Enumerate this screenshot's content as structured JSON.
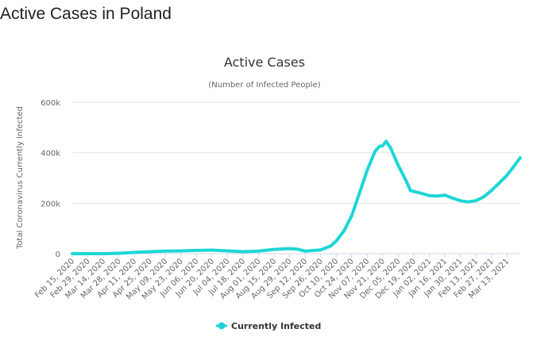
{
  "page": {
    "title": "Active Cases in Poland"
  },
  "chart_data": {
    "type": "line",
    "title": "Active Cases",
    "subtitle": "(Number of Infected People)",
    "ylabel": "Total Coronavirus Currently Infected",
    "xlabel": "",
    "ylim": [
      0,
      600000
    ],
    "yticks": [
      {
        "value": 0,
        "label": "0"
      },
      {
        "value": 200000,
        "label": "200k"
      },
      {
        "value": 400000,
        "label": "400k"
      },
      {
        "value": 600000,
        "label": "600k"
      }
    ],
    "xlim": [
      "2020-02-15",
      "2021-03-25"
    ],
    "xticks": [
      {
        "date": "2020-02-15",
        "label": "Feb 15, 2020"
      },
      {
        "date": "2020-02-29",
        "label": "Feb 29, 2020"
      },
      {
        "date": "2020-03-14",
        "label": "Mar 14, 2020"
      },
      {
        "date": "2020-03-28",
        "label": "Mar 28, 2020"
      },
      {
        "date": "2020-04-11",
        "label": "Apr 11, 2020"
      },
      {
        "date": "2020-04-25",
        "label": "Apr 25, 2020"
      },
      {
        "date": "2020-05-09",
        "label": "May 09, 2020"
      },
      {
        "date": "2020-05-23",
        "label": "May 23, 2020"
      },
      {
        "date": "2020-06-06",
        "label": "Jun 06, 2020"
      },
      {
        "date": "2020-06-20",
        "label": "Jun 20, 2020"
      },
      {
        "date": "2020-07-04",
        "label": "Jul 04, 2020"
      },
      {
        "date": "2020-07-18",
        "label": "Jul 18, 2020"
      },
      {
        "date": "2020-08-01",
        "label": "Aug 01, 2020"
      },
      {
        "date": "2020-08-15",
        "label": "Aug 15, 2020"
      },
      {
        "date": "2020-08-29",
        "label": "Aug 29, 2020"
      },
      {
        "date": "2020-09-12",
        "label": "Sep 12, 2020"
      },
      {
        "date": "2020-09-26",
        "label": "Sep 26, 2020"
      },
      {
        "date": "2020-10-10",
        "label": "Oct 10, 2020"
      },
      {
        "date": "2020-10-24",
        "label": "Oct 24, 2020"
      },
      {
        "date": "2020-11-07",
        "label": "Nov 07, 2020"
      },
      {
        "date": "2020-11-21",
        "label": "Nov 21, 2020"
      },
      {
        "date": "2020-12-05",
        "label": "Dec 05, 2020"
      },
      {
        "date": "2020-12-19",
        "label": "Dec 19, 2020"
      },
      {
        "date": "2021-01-02",
        "label": "Jan 02, 2021"
      },
      {
        "date": "2021-01-16",
        "label": "Jan 16, 2021"
      },
      {
        "date": "2021-01-30",
        "label": "Jan 30, 2021"
      },
      {
        "date": "2021-02-13",
        "label": "Feb 13, 2021"
      },
      {
        "date": "2021-02-27",
        "label": "Feb 27, 2021"
      },
      {
        "date": "2021-03-13",
        "label": "Mar 13, 2021"
      }
    ],
    "grid": true,
    "legend_position": "bottom-center",
    "series": [
      {
        "name": "Currently Infected",
        "color": "#1ed6d6",
        "points": [
          {
            "date": "2020-02-15",
            "value": 0
          },
          {
            "date": "2020-03-14",
            "value": 100
          },
          {
            "date": "2020-03-28",
            "value": 1500
          },
          {
            "date": "2020-04-11",
            "value": 5000
          },
          {
            "date": "2020-04-25",
            "value": 8000
          },
          {
            "date": "2020-05-09",
            "value": 10000
          },
          {
            "date": "2020-05-23",
            "value": 11000
          },
          {
            "date": "2020-06-06",
            "value": 13000
          },
          {
            "date": "2020-06-20",
            "value": 14000
          },
          {
            "date": "2020-07-04",
            "value": 11000
          },
          {
            "date": "2020-07-18",
            "value": 8000
          },
          {
            "date": "2020-08-01",
            "value": 10000
          },
          {
            "date": "2020-08-15",
            "value": 17000
          },
          {
            "date": "2020-08-29",
            "value": 20000
          },
          {
            "date": "2020-09-05",
            "value": 18000
          },
          {
            "date": "2020-09-12",
            "value": 10000
          },
          {
            "date": "2020-09-26",
            "value": 15000
          },
          {
            "date": "2020-10-05",
            "value": 30000
          },
          {
            "date": "2020-10-10",
            "value": 50000
          },
          {
            "date": "2020-10-17",
            "value": 90000
          },
          {
            "date": "2020-10-24",
            "value": 150000
          },
          {
            "date": "2020-10-31",
            "value": 240000
          },
          {
            "date": "2020-11-07",
            "value": 330000
          },
          {
            "date": "2020-11-14",
            "value": 405000
          },
          {
            "date": "2020-11-18",
            "value": 425000
          },
          {
            "date": "2020-11-21",
            "value": 428000
          },
          {
            "date": "2020-11-24",
            "value": 445000
          },
          {
            "date": "2020-11-28",
            "value": 420000
          },
          {
            "date": "2020-12-05",
            "value": 350000
          },
          {
            "date": "2020-12-12",
            "value": 290000
          },
          {
            "date": "2020-12-16",
            "value": 250000
          },
          {
            "date": "2020-12-25",
            "value": 240000
          },
          {
            "date": "2021-01-02",
            "value": 230000
          },
          {
            "date": "2021-01-09",
            "value": 228000
          },
          {
            "date": "2021-01-16",
            "value": 232000
          },
          {
            "date": "2021-01-23",
            "value": 220000
          },
          {
            "date": "2021-01-30",
            "value": 210000
          },
          {
            "date": "2021-02-06",
            "value": 205000
          },
          {
            "date": "2021-02-13",
            "value": 210000
          },
          {
            "date": "2021-02-20",
            "value": 225000
          },
          {
            "date": "2021-02-27",
            "value": 250000
          },
          {
            "date": "2021-03-06",
            "value": 280000
          },
          {
            "date": "2021-03-13",
            "value": 310000
          },
          {
            "date": "2021-03-20",
            "value": 350000
          },
          {
            "date": "2021-03-25",
            "value": 380000
          }
        ]
      }
    ]
  }
}
